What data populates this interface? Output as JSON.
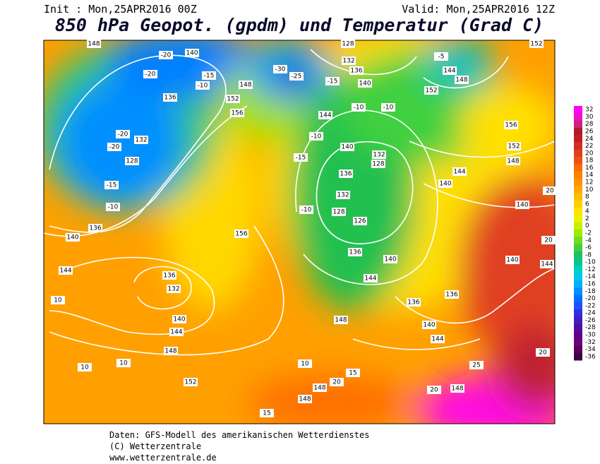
{
  "header": {
    "init": "Init : Mon,25APR2016 00Z",
    "valid": "Valid: Mon,25APR2016 12Z",
    "title": "850 hPa Geopot. (gpdm) und Temperatur (Grad C)"
  },
  "legend": {
    "values": [
      32,
      30,
      28,
      26,
      24,
      22,
      20,
      18,
      16,
      14,
      12,
      10,
      8,
      6,
      4,
      2,
      0,
      -2,
      -4,
      -6,
      -8,
      -10,
      -12,
      -14,
      -16,
      -18,
      -20,
      -22,
      -24,
      -26,
      -28,
      -30,
      -32,
      -34,
      -36
    ],
    "colors": [
      "#ff00ff",
      "#ee10d0",
      "#d02080",
      "#b01830",
      "#c02020",
      "#d03020",
      "#e04020",
      "#f05010",
      "#ff6a00",
      "#ff8000",
      "#ff9400",
      "#ffa800",
      "#ffbc00",
      "#ffd000",
      "#ffe400",
      "#f0f000",
      "#c8f000",
      "#a0e800",
      "#70dc20",
      "#40d040",
      "#20c060",
      "#00c890",
      "#00d0c0",
      "#00c8e8",
      "#00b0ff",
      "#0090ff",
      "#0070ff",
      "#2050ff",
      "#3030e0",
      "#4020c0",
      "#5010a0",
      "#600090",
      "#700080",
      "#5a0060",
      "#400040"
    ]
  },
  "map": {
    "labels": [
      "148",
      "-20",
      "140",
      "-20",
      "-15",
      "-10",
      "136",
      "148",
      "152",
      "156",
      "-25",
      "-30",
      "-15",
      "128",
      "132",
      "136",
      "140",
      "144",
      "-10",
      "-10",
      "-5",
      "144",
      "148",
      "152",
      "152",
      "156",
      "152",
      "148",
      "144",
      "140",
      "-20",
      "132",
      "-20",
      "128",
      "-15",
      "-10",
      "136",
      "140",
      "144",
      "136",
      "132",
      "140",
      "144",
      "148",
      "152",
      "156",
      "132",
      "128",
      "136",
      "132",
      "128",
      "126",
      "136",
      "140",
      "144",
      "136",
      "140",
      "144",
      "148",
      "148",
      "20",
      "25",
      "20",
      "10",
      "10",
      "10",
      "15",
      "148",
      "148",
      "20",
      "15",
      "10",
      "140",
      "144",
      "140",
      "136",
      "20",
      "20",
      "-10",
      "-15",
      "-10",
      "140"
    ]
  },
  "footer": {
    "lines": [
      "Daten: GFS-Modell des amerikanischen Wetterdienstes",
      "(C) Wetterzentrale",
      "www.wetterzentrale.de"
    ]
  }
}
